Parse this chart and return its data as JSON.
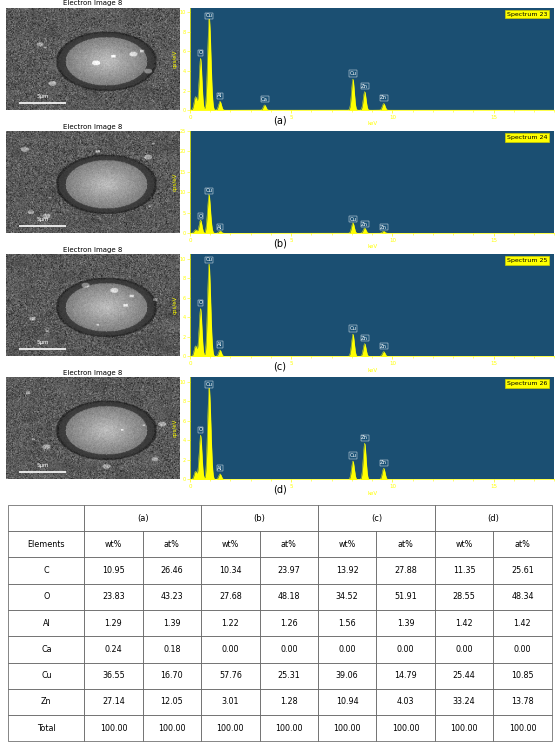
{
  "spectra": [
    {
      "label": "Spectrum 23",
      "panel": "(a)",
      "peaks": [
        {
          "element": "Cu",
          "keV": 0.93,
          "height": 9.5
        },
        {
          "element": "O",
          "keV": 0.525,
          "height": 7.0
        },
        {
          "element": "Zn",
          "keV": 1.012,
          "height": 5.0
        },
        {
          "element": "C",
          "keV": 0.277,
          "height": 1.8
        },
        {
          "element": "Al",
          "keV": 1.486,
          "height": 1.2
        },
        {
          "element": "Ca",
          "keV": 3.69,
          "height": 0.7
        },
        {
          "element": "Cu",
          "keV": 8.05,
          "height": 4.2
        },
        {
          "element": "Zn",
          "keV": 8.63,
          "height": 2.5
        },
        {
          "element": "Zn",
          "keV": 9.57,
          "height": 0.9
        }
      ],
      "ylim": [
        0,
        10.5
      ],
      "yticks": [
        0,
        2,
        4,
        6,
        8,
        10
      ],
      "sigma": 0.07
    },
    {
      "label": "Spectrum 24",
      "panel": "(b)",
      "peaks": [
        {
          "element": "Cu",
          "keV": 0.93,
          "height": 10.0
        },
        {
          "element": "O",
          "keV": 0.525,
          "height": 3.8
        },
        {
          "element": "Zn",
          "keV": 1.012,
          "height": 2.2
        },
        {
          "element": "C",
          "keV": 0.277,
          "height": 1.0
        },
        {
          "element": "Al",
          "keV": 1.486,
          "height": 0.7
        },
        {
          "element": "Cu",
          "keV": 8.05,
          "height": 3.0
        },
        {
          "element": "Zn",
          "keV": 8.63,
          "height": 1.5
        },
        {
          "element": "Zn",
          "keV": 9.57,
          "height": 0.6
        }
      ],
      "ylim": [
        0,
        10.5
      ],
      "yticks": [
        0,
        5,
        10,
        15,
        20,
        25
      ],
      "sigma": 0.07
    },
    {
      "label": "Spectrum 25",
      "panel": "(c)",
      "peaks": [
        {
          "element": "Cu",
          "keV": 0.93,
          "height": 9.8
        },
        {
          "element": "O",
          "keV": 0.525,
          "height": 6.0
        },
        {
          "element": "Zn",
          "keV": 1.012,
          "height": 3.2
        },
        {
          "element": "C",
          "keV": 0.277,
          "height": 1.3
        },
        {
          "element": "Al",
          "keV": 1.486,
          "height": 0.8
        },
        {
          "element": "Cu",
          "keV": 8.05,
          "height": 2.8
        },
        {
          "element": "Zn",
          "keV": 8.63,
          "height": 1.6
        },
        {
          "element": "Zn",
          "keV": 9.57,
          "height": 0.6
        }
      ],
      "ylim": [
        0,
        10.5
      ],
      "yticks": [
        0,
        2,
        4,
        6,
        8,
        10
      ],
      "sigma": 0.07
    },
    {
      "label": "Spectrum 26",
      "panel": "(d)",
      "peaks": [
        {
          "element": "Cu",
          "keV": 0.93,
          "height": 9.0
        },
        {
          "element": "O",
          "keV": 0.525,
          "height": 5.5
        },
        {
          "element": "Zn",
          "keV": 1.012,
          "height": 4.2
        },
        {
          "element": "C",
          "keV": 0.277,
          "height": 1.0
        },
        {
          "element": "Al",
          "keV": 1.486,
          "height": 0.7
        },
        {
          "element": "Zn",
          "keV": 8.63,
          "height": 4.5
        },
        {
          "element": "Cu",
          "keV": 8.05,
          "height": 2.3
        },
        {
          "element": "Zn",
          "keV": 9.57,
          "height": 1.4
        }
      ],
      "ylim": [
        0,
        10.5
      ],
      "yticks": [
        0,
        2,
        4,
        6,
        8,
        10
      ],
      "sigma": 0.07
    }
  ],
  "eds_bg_color": "#1b4f72",
  "peak_color": "#ffff00",
  "label_bg_color": "#1a5276",
  "xlabel": "keV",
  "ylabel": "cps/eV",
  "xlim": [
    0,
    18
  ],
  "xticks": [
    0,
    5,
    10,
    15
  ],
  "table": {
    "rows": [
      [
        "C",
        "10.95",
        "26.46",
        "10.34",
        "23.97",
        "13.92",
        "27.88",
        "11.35",
        "25.61"
      ],
      [
        "O",
        "23.83",
        "43.23",
        "27.68",
        "48.18",
        "34.52",
        "51.91",
        "28.55",
        "48.34"
      ],
      [
        "Al",
        "1.29",
        "1.39",
        "1.22",
        "1.26",
        "1.56",
        "1.39",
        "1.42",
        "1.42"
      ],
      [
        "Ca",
        "0.24",
        "0.18",
        "0.00",
        "0.00",
        "0.00",
        "0.00",
        "0.00",
        "0.00"
      ],
      [
        "Cu",
        "36.55",
        "16.70",
        "57.76",
        "25.31",
        "39.06",
        "14.79",
        "25.44",
        "10.85"
      ],
      [
        "Zn",
        "27.14",
        "12.05",
        "3.01",
        "1.28",
        "10.94",
        "4.03",
        "33.24",
        "13.78"
      ],
      [
        "Total",
        "100.00",
        "100.00",
        "100.00",
        "100.00",
        "100.00",
        "100.00",
        "100.00",
        "100.00"
      ]
    ]
  },
  "sem_title": "Electron Image 8",
  "sem_scale": "5μm"
}
